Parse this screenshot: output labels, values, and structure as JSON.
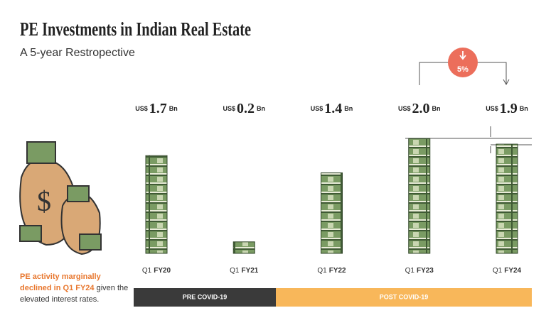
{
  "chart_data": {
    "type": "bar",
    "title": "PE Investments in Indian Real Estate",
    "subtitle": "A 5-year Restropective",
    "category_prefix": "Q1",
    "categories": [
      "FY20",
      "FY21",
      "FY22",
      "FY23",
      "FY24"
    ],
    "values": [
      1.7,
      0.2,
      1.4,
      2.0,
      1.9
    ],
    "value_labels": [
      "1.7",
      "0.2",
      "1.4",
      "2.0",
      "1.9"
    ],
    "value_prefix": "US$",
    "value_unit": "Bn",
    "ylim": [
      0,
      2
    ],
    "periods": [
      "PRE COVID-19",
      "POST COVID-19"
    ],
    "annotation": "5%",
    "note_highlight": "PE activity marginally declined in Q1 FY24",
    "note_rest": "given the elevated interest rates."
  }
}
